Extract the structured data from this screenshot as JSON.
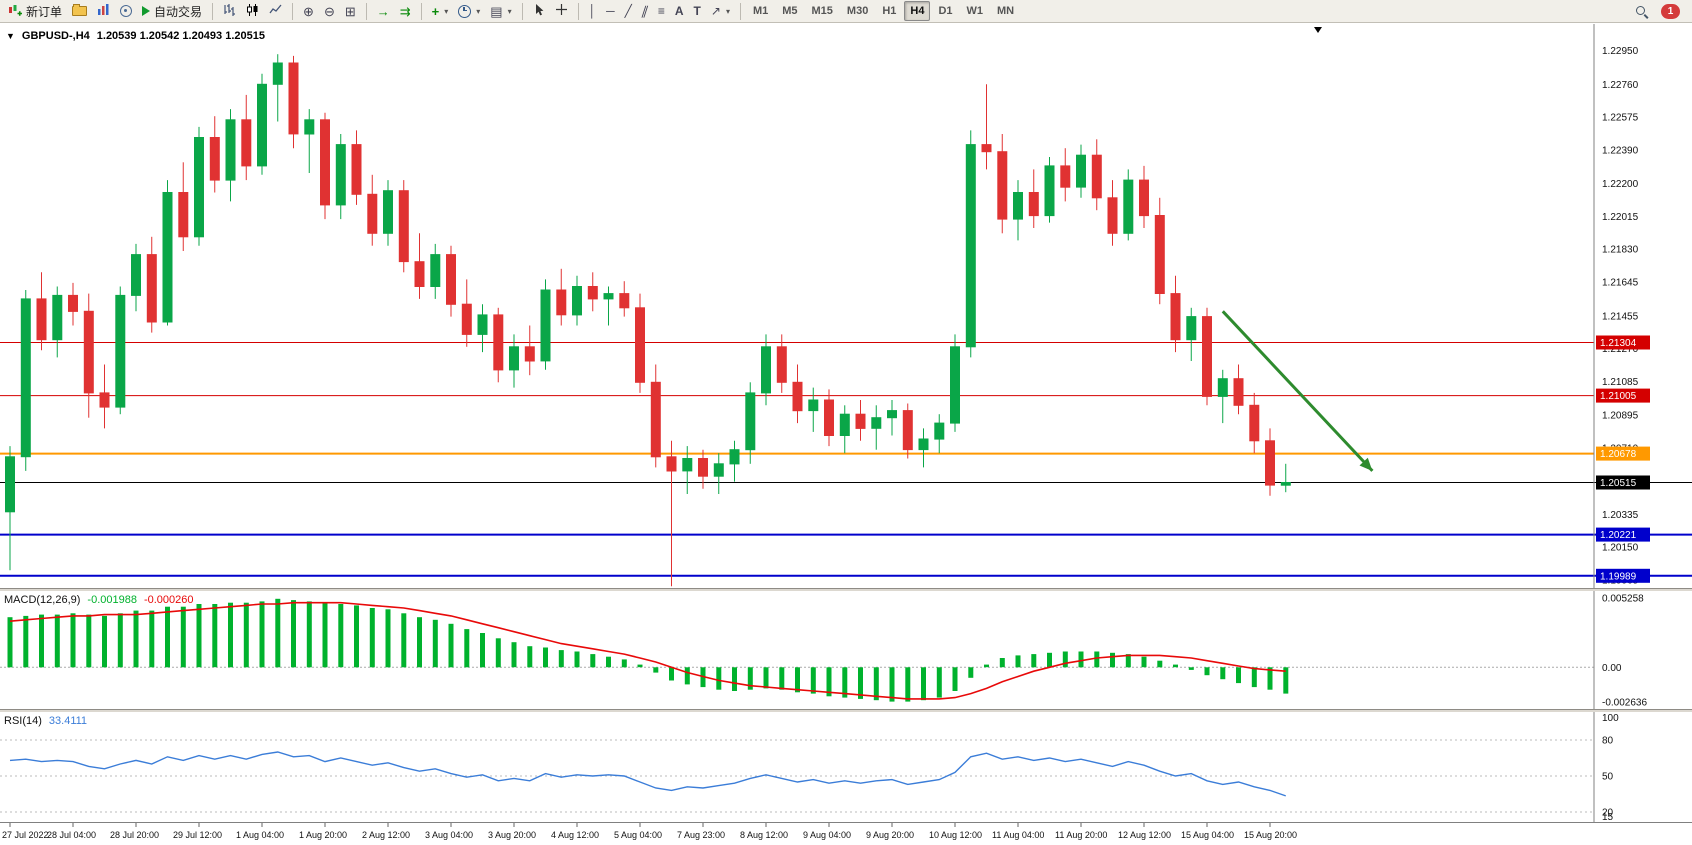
{
  "toolbar": {
    "new_order": "新订单",
    "autotrading": "自动交易",
    "timeframes": [
      "M1",
      "M5",
      "M15",
      "M30",
      "H1",
      "H4",
      "D1",
      "W1",
      "MN"
    ],
    "active_timeframe": "H4",
    "notification_badge": "1",
    "icons": [
      "new-order",
      "profiles",
      "market-watch",
      "navigator",
      "autotrading",
      "bar-chart",
      "candlestick-chart",
      "line-chart",
      "zoom-in",
      "zoom-out",
      "tile-windows",
      "auto-scroll",
      "chart-shift",
      "indicators",
      "periods",
      "templates",
      "cursor",
      "crosshair",
      "vertical-line",
      "horizontal-line",
      "trendline",
      "equidistant-channel",
      "fibonacci",
      "text",
      "text-label",
      "arrows",
      "search",
      "notifications"
    ]
  },
  "chart": {
    "symbol": "GBPUSD-,H4",
    "ohlc": "1.20539 1.20542 1.20493 1.20515",
    "macd_label": "MACD(12,26,9)",
    "macd_value": "-0.001988",
    "macd_signal_value": "-0.000260",
    "rsi_label": "RSI(14)",
    "rsi_value": "33.4111"
  },
  "colors": {
    "candle_up": "#0aa648",
    "candle_down": "#e03232",
    "macd_histogram": "#00b22d",
    "macd_signal": "#e80909",
    "rsi_line": "#3b7dd8",
    "line_red": "#d40000",
    "line_orange": "#ff9900",
    "line_black": "#000000",
    "line_blue": "#0000cc",
    "arrow_green": "#2e8b2e",
    "toolbar_bg": "#f1efe9",
    "panel_border": "#808080"
  },
  "chart_data": [
    {
      "type": "candlestick",
      "name": "GBPUSD- H4 price",
      "price_max": 1.231,
      "price_min": 1.1992,
      "candles": [
        [
          1.2035,
          1.2072,
          1.2002,
          1.2066
        ],
        [
          1.2066,
          1.216,
          1.2058,
          1.2155
        ],
        [
          1.2155,
          1.217,
          1.2126,
          1.2132
        ],
        [
          1.2132,
          1.2162,
          1.2122,
          1.2157
        ],
        [
          1.2157,
          1.2164,
          1.214,
          1.2148
        ],
        [
          1.2148,
          1.2158,
          1.2088,
          1.2102
        ],
        [
          1.2102,
          1.2118,
          1.2082,
          1.2094
        ],
        [
          1.2094,
          1.2162,
          1.209,
          1.2157
        ],
        [
          1.2157,
          1.2186,
          1.2148,
          1.218
        ],
        [
          1.218,
          1.219,
          1.2136,
          1.2142
        ],
        [
          1.2142,
          1.2222,
          1.214,
          1.2215
        ],
        [
          1.2215,
          1.2232,
          1.2182,
          1.219
        ],
        [
          1.219,
          1.2252,
          1.2185,
          1.2246
        ],
        [
          1.2246,
          1.2258,
          1.2215,
          1.2222
        ],
        [
          1.2222,
          1.2262,
          1.221,
          1.2256
        ],
        [
          1.2256,
          1.227,
          1.2222,
          1.223
        ],
        [
          1.223,
          1.2282,
          1.2225,
          1.2276
        ],
        [
          1.2276,
          1.2293,
          1.2255,
          1.2288
        ],
        [
          1.2288,
          1.2292,
          1.224,
          1.2248
        ],
        [
          1.2248,
          1.2262,
          1.2226,
          1.2256
        ],
        [
          1.2256,
          1.226,
          1.22,
          1.2208
        ],
        [
          1.2208,
          1.2248,
          1.22,
          1.2242
        ],
        [
          1.2242,
          1.225,
          1.2208,
          1.2214
        ],
        [
          1.2214,
          1.2225,
          1.2185,
          1.2192
        ],
        [
          1.2192,
          1.2222,
          1.2185,
          1.2216
        ],
        [
          1.2216,
          1.2222,
          1.217,
          1.2176
        ],
        [
          1.2176,
          1.2192,
          1.2155,
          1.2162
        ],
        [
          1.2162,
          1.2186,
          1.2155,
          1.218
        ],
        [
          1.218,
          1.2185,
          1.2145,
          1.2152
        ],
        [
          1.2152,
          1.2166,
          1.2128,
          1.2135
        ],
        [
          1.2135,
          1.2152,
          1.2125,
          1.2146
        ],
        [
          1.2146,
          1.215,
          1.2108,
          1.2115
        ],
        [
          1.2115,
          1.2135,
          1.2105,
          1.2128
        ],
        [
          1.2128,
          1.214,
          1.2112,
          1.212
        ],
        [
          1.212,
          1.2166,
          1.2115,
          1.216
        ],
        [
          1.216,
          1.2172,
          1.214,
          1.2146
        ],
        [
          1.2146,
          1.2168,
          1.214,
          1.2162
        ],
        [
          1.2162,
          1.217,
          1.2148,
          1.2155
        ],
        [
          1.2155,
          1.2162,
          1.214,
          1.2158
        ],
        [
          1.2158,
          1.2165,
          1.2145,
          1.215
        ],
        [
          1.215,
          1.2158,
          1.2102,
          1.2108
        ],
        [
          1.2108,
          1.2118,
          1.206,
          1.2066
        ],
        [
          1.2066,
          1.2075,
          1.1993,
          1.2058
        ],
        [
          1.2058,
          1.2072,
          1.2045,
          1.2065
        ],
        [
          1.2065,
          1.207,
          1.2048,
          1.2055
        ],
        [
          1.2055,
          1.2068,
          1.2045,
          1.2062
        ],
        [
          1.2062,
          1.2075,
          1.2052,
          1.207
        ],
        [
          1.207,
          1.2108,
          1.2062,
          1.2102
        ],
        [
          1.2102,
          1.2135,
          1.2095,
          1.2128
        ],
        [
          1.2128,
          1.2135,
          1.2102,
          1.2108
        ],
        [
          1.2108,
          1.2118,
          1.2085,
          1.2092
        ],
        [
          1.2092,
          1.2105,
          1.208,
          1.2098
        ],
        [
          1.2098,
          1.2104,
          1.2072,
          1.2078
        ],
        [
          1.2078,
          1.2095,
          1.2068,
          1.209
        ],
        [
          1.209,
          1.2098,
          1.2075,
          1.2082
        ],
        [
          1.2082,
          1.2095,
          1.207,
          1.2088
        ],
        [
          1.2088,
          1.2098,
          1.2078,
          1.2092
        ],
        [
          1.2092,
          1.2096,
          1.2065,
          1.207
        ],
        [
          1.207,
          1.2082,
          1.206,
          1.2076
        ],
        [
          1.2076,
          1.209,
          1.2068,
          1.2085
        ],
        [
          1.2085,
          1.2135,
          1.208,
          1.2128
        ],
        [
          1.2128,
          1.225,
          1.2122,
          1.2242
        ],
        [
          1.2242,
          1.2276,
          1.2228,
          1.2238
        ],
        [
          1.2238,
          1.2248,
          1.2192,
          1.22
        ],
        [
          1.22,
          1.2222,
          1.2188,
          1.2215
        ],
        [
          1.2215,
          1.2228,
          1.2195,
          1.2202
        ],
        [
          1.2202,
          1.2235,
          1.2198,
          1.223
        ],
        [
          1.223,
          1.224,
          1.221,
          1.2218
        ],
        [
          1.2218,
          1.2242,
          1.2212,
          1.2236
        ],
        [
          1.2236,
          1.2245,
          1.2205,
          1.2212
        ],
        [
          1.2212,
          1.2222,
          1.2185,
          1.2192
        ],
        [
          1.2192,
          1.2228,
          1.2188,
          1.2222
        ],
        [
          1.2222,
          1.223,
          1.2195,
          1.2202
        ],
        [
          1.2202,
          1.2212,
          1.2152,
          1.2158
        ],
        [
          1.2158,
          1.2168,
          1.2125,
          1.2132
        ],
        [
          1.2132,
          1.215,
          1.212,
          1.2145
        ],
        [
          1.2145,
          1.215,
          1.2095,
          1.21
        ],
        [
          1.21,
          1.2115,
          1.2085,
          1.211
        ],
        [
          1.211,
          1.2118,
          1.209,
          1.2095
        ],
        [
          1.2095,
          1.2102,
          1.2068,
          1.2075
        ],
        [
          1.2075,
          1.2082,
          1.2044,
          1.205
        ],
        [
          1.205,
          1.2062,
          1.2046,
          1.20515
        ]
      ],
      "price_axis_labels": [
        "1.22950",
        "1.22760",
        "1.22575",
        "1.22390",
        "1.22200",
        "1.22015",
        "1.21830",
        "1.21645",
        "1.21455",
        "1.21270",
        "1.21085",
        "1.20895",
        "1.20710",
        "1.20525",
        "1.20335",
        "1.20150",
        "1.19965"
      ],
      "price_lines": [
        {
          "price": 1.21304,
          "label": "1.21304",
          "color": "#d40000",
          "width": 1,
          "span": "plot"
        },
        {
          "price": 1.21005,
          "label": "1.21005",
          "color": "#d40000",
          "width": 1,
          "span": "plot"
        },
        {
          "price": 1.20678,
          "label": "1.20678",
          "color": "#ff9900",
          "width": 2,
          "span": "plot"
        },
        {
          "price": 1.20515,
          "label": "1.20515",
          "color": "#000000",
          "width": 1,
          "span": "full"
        },
        {
          "price": 1.20221,
          "label": "1.20221",
          "color": "#0000cc",
          "width": 2,
          "span": "full"
        },
        {
          "price": 1.19989,
          "label": "1.19989",
          "color": "#0000cc",
          "width": 2,
          "span": "full"
        }
      ],
      "arrow": {
        "from_bar": 77,
        "from_price": 1.2148,
        "to_bar": 86.5,
        "to_price": 1.2058,
        "color": "#2e8b2e"
      },
      "time_labels": [
        "27 Jul 2022",
        "28 Jul 04:00",
        "28 Jul 20:00",
        "29 Jul 12:00",
        "1 Aug 04:00",
        "1 Aug 20:00",
        "2 Aug 12:00",
        "3 Aug 04:00",
        "3 Aug 20:00",
        "4 Aug 12:00",
        "5 Aug 04:00",
        "7 Aug 23:00",
        "8 Aug 12:00",
        "9 Aug 04:00",
        "9 Aug 20:00",
        "10 Aug 12:00",
        "11 Aug 04:00",
        "11 Aug 20:00",
        "12 Aug 12:00",
        "15 Aug 04:00",
        "15 Aug 20:00"
      ]
    },
    {
      "type": "bar",
      "name": "MACD(12,26,9)",
      "ymax": 0.005258,
      "ymin": -0.002636,
      "axis_labels": [
        "0.005258",
        "0.00",
        "-0.002636"
      ],
      "histogram": [
        0.0038,
        0.0039,
        0.004,
        0.004,
        0.0041,
        0.004,
        0.0039,
        0.0041,
        0.0043,
        0.0043,
        0.0046,
        0.0046,
        0.0048,
        0.0048,
        0.0049,
        0.0049,
        0.005,
        0.0052,
        0.0051,
        0.005,
        0.0049,
        0.0048,
        0.0047,
        0.0045,
        0.0044,
        0.0041,
        0.0038,
        0.0036,
        0.0033,
        0.0029,
        0.0026,
        0.0022,
        0.0019,
        0.0016,
        0.0015,
        0.0013,
        0.0012,
        0.001,
        0.0008,
        0.0006,
        0.0002,
        -0.0004,
        -0.001,
        -0.0013,
        -0.0015,
        -0.0017,
        -0.0018,
        -0.0017,
        -0.0016,
        -0.0017,
        -0.0019,
        -0.002,
        -0.0022,
        -0.0023,
        -0.0024,
        -0.0025,
        -0.0026,
        -0.0026,
        -0.0025,
        -0.0023,
        -0.0018,
        -0.0008,
        0.0002,
        0.0007,
        0.0009,
        0.001,
        0.0011,
        0.0012,
        0.0012,
        0.0012,
        0.0011,
        0.001,
        0.0008,
        0.0005,
        0.0002,
        -0.0002,
        -0.0006,
        -0.0009,
        -0.0012,
        -0.0015,
        -0.0017,
        -0.002
      ],
      "signal": [
        0.0035,
        0.0036,
        0.0037,
        0.0038,
        0.0039,
        0.0039,
        0.004,
        0.004,
        0.004,
        0.0041,
        0.0042,
        0.0043,
        0.0044,
        0.0045,
        0.0046,
        0.0047,
        0.0048,
        0.0048,
        0.0049,
        0.0049,
        0.0049,
        0.0049,
        0.0048,
        0.0047,
        0.0046,
        0.0045,
        0.0043,
        0.0041,
        0.0039,
        0.0036,
        0.0033,
        0.003,
        0.0027,
        0.0024,
        0.0021,
        0.0018,
        0.0016,
        0.0014,
        0.0012,
        0.001,
        0.0007,
        0.0004,
        0.0,
        -0.0004,
        -0.0007,
        -0.001,
        -0.0012,
        -0.0014,
        -0.0015,
        -0.0016,
        -0.0017,
        -0.0018,
        -0.0019,
        -0.002,
        -0.0021,
        -0.0022,
        -0.0023,
        -0.0024,
        -0.0024,
        -0.0024,
        -0.0023,
        -0.002,
        -0.0016,
        -0.0011,
        -0.0007,
        -0.0003,
        0.0,
        0.0003,
        0.0005,
        0.0007,
        0.0008,
        0.0009,
        0.0009,
        0.0009,
        0.0008,
        0.0007,
        0.0005,
        0.0003,
        0.0001,
        -0.0001,
        -0.0002,
        -0.0003
      ]
    },
    {
      "type": "line",
      "name": "RSI(14)",
      "ymax": 100,
      "ymin": 15,
      "levels": [
        80,
        50,
        20
      ],
      "axis_labels": [
        "100",
        "80",
        "50",
        "20",
        "15"
      ],
      "values": [
        63,
        64,
        62,
        63,
        62,
        58,
        56,
        60,
        63,
        60,
        66,
        63,
        67,
        64,
        67,
        64,
        68,
        70,
        66,
        67,
        62,
        65,
        62,
        59,
        61,
        57,
        54,
        56,
        52,
        49,
        51,
        46,
        48,
        46,
        52,
        49,
        51,
        50,
        51,
        50,
        45,
        40,
        38,
        41,
        40,
        42,
        44,
        48,
        51,
        48,
        45,
        47,
        44,
        46,
        44,
        46,
        47,
        43,
        45,
        47,
        53,
        66,
        69,
        64,
        66,
        63,
        65,
        62,
        64,
        61,
        58,
        62,
        59,
        54,
        50,
        52,
        46,
        43,
        45,
        41,
        38,
        33.4
      ]
    }
  ]
}
